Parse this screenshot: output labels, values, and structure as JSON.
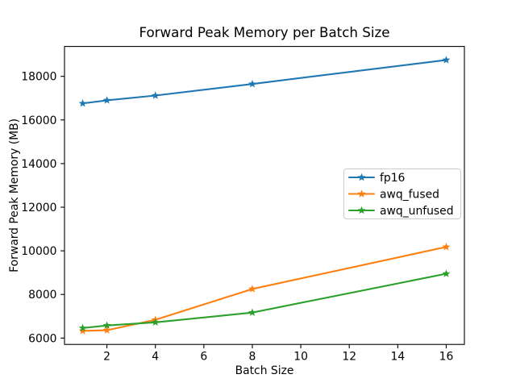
{
  "chart_data": {
    "type": "line",
    "title": "Forward Peak Memory per Batch Size",
    "xlabel": "Batch Size",
    "ylabel": "Forward Peak Memory (MB)",
    "x": [
      1,
      2,
      4,
      8,
      16
    ],
    "series": [
      {
        "name": "fp16",
        "color": "#1f77b4",
        "values": [
          16760,
          16900,
          17120,
          17650,
          18750
        ]
      },
      {
        "name": "awq_fused",
        "color": "#ff7f0e",
        "values": [
          6330,
          6360,
          6840,
          8250,
          10180
        ]
      },
      {
        "name": "awq_unfused",
        "color": "#2ca02c",
        "values": [
          6460,
          6580,
          6720,
          7170,
          8950
        ]
      }
    ],
    "marker": "star",
    "xticks": [
      2,
      4,
      6,
      8,
      10,
      12,
      14,
      16
    ],
    "yticks": [
      6000,
      8000,
      10000,
      12000,
      14000,
      16000,
      18000
    ],
    "xlim": [
      0.25,
      16.75
    ],
    "ylim": [
      5709,
      19371
    ],
    "grid": false,
    "legend_position": "center-right",
    "background": "#ffffff",
    "axis_color": "#000000",
    "legend_border_color": "#cccccc"
  }
}
